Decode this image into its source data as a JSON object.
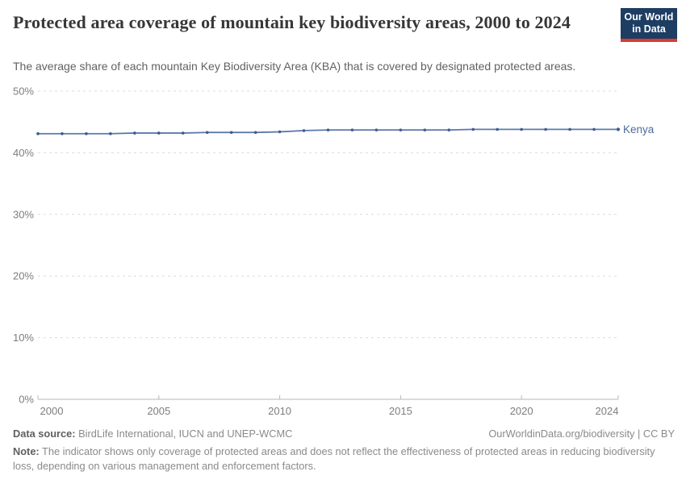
{
  "header": {
    "title": "Protected area coverage of mountain key biodiversity areas, 2000 to 2024",
    "subtitle": "The average share of each mountain Key Biodiversity Area (KBA) that is covered by designated protected areas.",
    "logo": {
      "line1": "Our World",
      "line2": "in Data",
      "bg_color": "#1d3d63",
      "accent_color": "#d73c32"
    }
  },
  "chart_data": {
    "type": "line",
    "title": "Protected area coverage of mountain key biodiversity areas, 2000 to 2024",
    "xlabel": "",
    "ylabel": "",
    "x": [
      2000,
      2001,
      2002,
      2003,
      2004,
      2005,
      2006,
      2007,
      2008,
      2009,
      2010,
      2011,
      2012,
      2013,
      2014,
      2015,
      2016,
      2017,
      2018,
      2019,
      2020,
      2021,
      2022,
      2023,
      2024
    ],
    "series": [
      {
        "name": "Kenya",
        "values": [
          43.1,
          43.1,
          43.1,
          43.1,
          43.2,
          43.2,
          43.2,
          43.3,
          43.3,
          43.3,
          43.4,
          43.6,
          43.7,
          43.7,
          43.7,
          43.7,
          43.7,
          43.7,
          43.8,
          43.8,
          43.8,
          43.8,
          43.8,
          43.8,
          43.8
        ]
      }
    ],
    "ylim": [
      0,
      50
    ],
    "yticks": [
      0,
      10,
      20,
      30,
      40,
      50
    ],
    "ytick_labels": [
      "0%",
      "10%",
      "20%",
      "30%",
      "40%",
      "50%"
    ],
    "xticks": [
      2000,
      2005,
      2010,
      2015,
      2020,
      2024
    ],
    "grid": "horizontal-dashed",
    "legend_position": "end-of-line-label",
    "colors": {
      "line": "#5b79ab",
      "marker": "#3f5c8f",
      "series_label": "#4c6a9c",
      "grid": "#dcdcdc",
      "axis": "#b8b8b8",
      "tick_label": "#7d7d7d"
    }
  },
  "footer": {
    "source_label": "Data source:",
    "source_text": " BirdLife International, IUCN and UNEP-WCMC",
    "link_text": "OurWorldinData.org/biodiversity | CC BY",
    "note_label": "Note:",
    "note_text": " The indicator shows only coverage of protected areas and does not reflect the effectiveness of protected areas in reducing biodiversity loss, depending on various management and enforcement factors."
  }
}
